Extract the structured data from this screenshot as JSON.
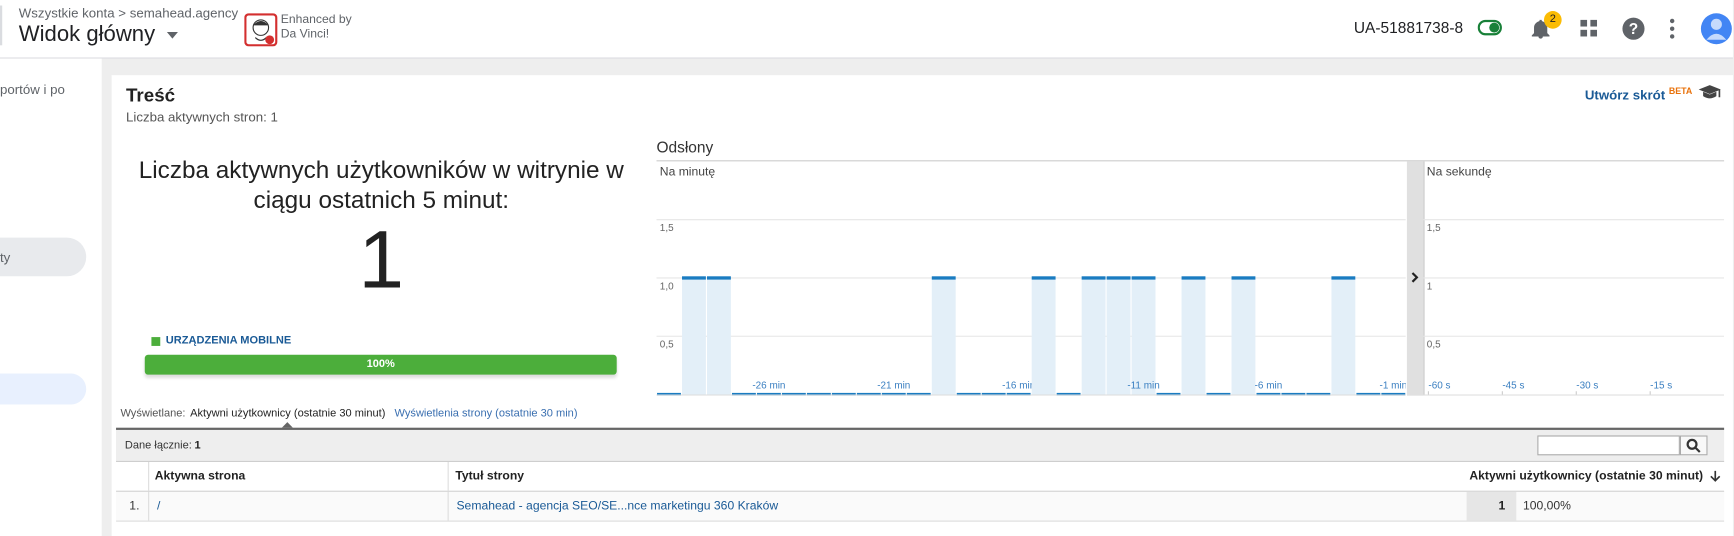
{
  "header": {
    "breadcrumb_root": "Wszystkie konta",
    "breadcrumb_separator": ">",
    "account": "semahead.agency",
    "view": "Widok główny",
    "extension_line1": "Enhanced by",
    "extension_line2": "Da Vinci!",
    "property_id": "UA-51881738-8",
    "notifications": "2"
  },
  "sidebar": {
    "items": [
      "portów i po",
      "ty"
    ]
  },
  "content": {
    "title": "Treść",
    "subtitle": "Liczba aktywnych stron: 1",
    "shortcut": "Utwórz skrót",
    "shortcut_badge": "BETA",
    "active_users_label": "Liczba aktywnych użytkowników w witrynie w ciągu ostatnich 5 minut:",
    "active_users": "1",
    "devices": {
      "categories": [
        "URZĄDZENIA MOBILNE"
      ],
      "values": [
        100
      ],
      "value_labels": [
        "100%"
      ],
      "color": "#4cae3b"
    },
    "pageviews_title": "Odsłony"
  },
  "chart_data": [
    {
      "type": "bar",
      "title": "Na minutę",
      "categories": [
        null,
        null,
        null,
        null,
        "-26 min",
        null,
        null,
        null,
        null,
        "-21 min",
        null,
        null,
        null,
        null,
        "-16 min",
        null,
        null,
        null,
        null,
        "-11 min",
        null,
        null,
        null,
        null,
        "-6 min",
        null,
        null,
        null,
        null,
        "-1 min"
      ],
      "values": [
        0,
        1,
        1,
        0,
        0,
        0,
        0,
        0,
        0,
        0,
        0,
        1,
        0,
        0,
        0,
        1,
        0,
        1,
        1,
        1,
        0,
        1,
        0,
        1,
        0,
        0,
        0,
        1,
        0,
        0
      ],
      "color": "#1a7cc1",
      "ylim": [
        0,
        2
      ],
      "yticks": [
        {
          "value": 0.5,
          "label": "0,5"
        },
        {
          "value": 1,
          "label": "1,0"
        },
        {
          "value": 1.5,
          "label": "1,5"
        }
      ],
      "grid": true
    },
    {
      "type": "bar",
      "title": "Na sekundę",
      "xlim": [
        -61,
        0
      ],
      "xticks": [
        {
          "value": -60,
          "label": "-60 s"
        },
        {
          "value": -45,
          "label": "-45 s"
        },
        {
          "value": -30,
          "label": "-30 s"
        },
        {
          "value": -15,
          "label": "-15 s"
        }
      ],
      "color": "#1a7cc1",
      "ylim": [
        0,
        2
      ],
      "yticks": [
        {
          "value": 0.5,
          "label": "0,5"
        },
        1,
        {
          "value": 1.5,
          "label": "1,5"
        }
      ],
      "grid": true
    }
  ],
  "table": {
    "shown_label": "Wyświetlane:",
    "tabs": [
      "Aktywni użytkownicy (ostatnie 30 minut)",
      "Wyświetlenia strony (ostatnie 30 min)"
    ],
    "total_label": "Dane łącznie:",
    "total": "1",
    "columns": [
      "Aktywna strona",
      "Tytuł strony",
      "Aktywni użytkownicy (ostatnie 30 minut)"
    ],
    "rows": [
      [
        "1.",
        "/",
        "Semahead - agencja SEO/SE...nce marketingu 360 Kraków",
        "1",
        "100,00%"
      ]
    ]
  }
}
